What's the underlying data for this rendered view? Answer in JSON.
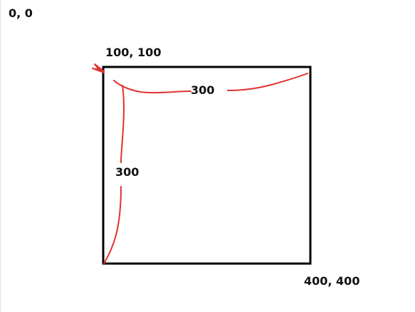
{
  "labels": {
    "origin": "0, 0",
    "top_left_corner": "100, 100",
    "bottom_right_corner": "400, 400",
    "width_dimension": "300",
    "height_dimension": "300"
  },
  "colors": {
    "square_stroke": "#000000",
    "annotation_stroke": "#e0322e",
    "text": "#111111"
  }
}
